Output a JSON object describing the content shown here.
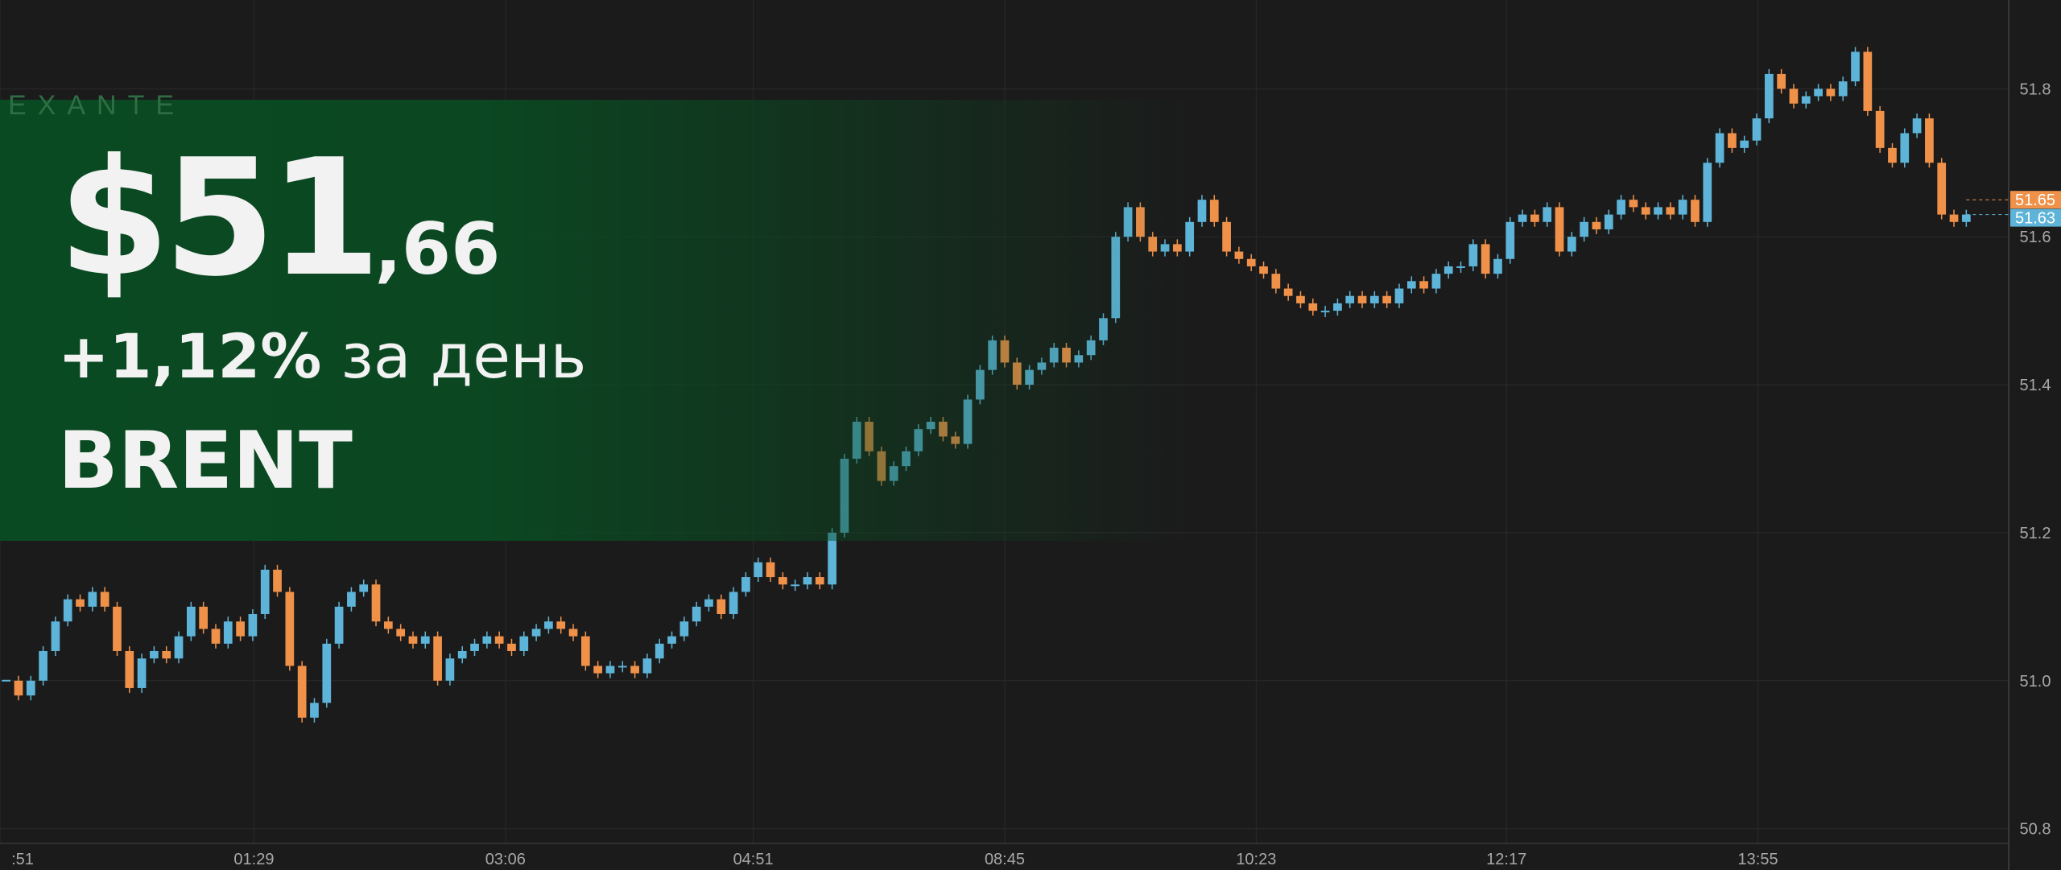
{
  "chart_data": {
    "type": "candlestick",
    "values": [
      51.0,
      50.98,
      51.0,
      51.04,
      51.08,
      51.11,
      51.1,
      51.12,
      51.1,
      51.04,
      50.99,
      51.03,
      51.04,
      51.03,
      51.06,
      51.1,
      51.07,
      51.05,
      51.08,
      51.06,
      51.09,
      51.15,
      51.12,
      51.02,
      50.95,
      50.97,
      51.05,
      51.1,
      51.12,
      51.13,
      51.08,
      51.07,
      51.06,
      51.05,
      51.06,
      51.0,
      51.03,
      51.04,
      51.05,
      51.06,
      51.05,
      51.04,
      51.06,
      51.07,
      51.08,
      51.07,
      51.06,
      51.02,
      51.01,
      51.02,
      51.02,
      51.01,
      51.03,
      51.05,
      51.06,
      51.08,
      51.1,
      51.11,
      51.09,
      51.12,
      51.14,
      51.16,
      51.14,
      51.13,
      51.13,
      51.14,
      51.13,
      51.2,
      51.3,
      51.35,
      51.31,
      51.27,
      51.29,
      51.31,
      51.34,
      51.35,
      51.33,
      51.32,
      51.38,
      51.42,
      51.46,
      51.43,
      51.4,
      51.42,
      51.43,
      51.45,
      51.43,
      51.44,
      51.46,
      51.49,
      51.6,
      51.64,
      51.6,
      51.58,
      51.59,
      51.58,
      51.62,
      51.65,
      51.62,
      51.58,
      51.57,
      51.56,
      51.55,
      51.53,
      51.52,
      51.51,
      51.5,
      51.5,
      51.51,
      51.52,
      51.51,
      51.52,
      51.51,
      51.53,
      51.54,
      51.53,
      51.55,
      51.56,
      51.56,
      51.59,
      51.55,
      51.57,
      51.62,
      51.63,
      51.62,
      51.64,
      51.58,
      51.6,
      51.62,
      51.61,
      51.63,
      51.65,
      51.64,
      51.63,
      51.64,
      51.63,
      51.65,
      51.62,
      51.7,
      51.74,
      51.72,
      51.73,
      51.76,
      51.82,
      51.8,
      51.78,
      51.79,
      51.8,
      51.79,
      51.81,
      51.85,
      51.77,
      51.72,
      51.7,
      51.74,
      51.76,
      51.7,
      51.63,
      51.62,
      51.63
    ],
    "up_color": "#5db4d8",
    "down_color": "#f0914a",
    "ylim": [
      50.78,
      51.92
    ],
    "yticks": [
      50.8,
      {
        "value": 51,
        "label": "51.0"
      },
      51.2,
      51.4,
      51.6,
      51.8
    ],
    "xticks": [
      {
        "value": 0,
        "label": ":51"
      },
      {
        "value": 20.6,
        "label": "01:29"
      },
      {
        "value": 41,
        "label": "03:06"
      },
      {
        "value": 61.1,
        "label": "04:51"
      },
      {
        "value": 81.5,
        "label": "08:45"
      },
      {
        "value": 101.9,
        "label": "10:23"
      },
      {
        "value": 122.2,
        "label": "12:17"
      },
      {
        "value": 142.6,
        "label": "13:55"
      }
    ],
    "price_markers": [
      {
        "value": 51.65,
        "label": "51.65",
        "color": "#f0914a"
      },
      {
        "value": 51.63,
        "label": "51.63",
        "color": "#5db4d8"
      }
    ],
    "grid": true
  },
  "overlay": {
    "brand": "EXANTE",
    "price_main": "$51",
    "price_fraction": ",66",
    "change": "+1,12%",
    "change_suffix": "за день",
    "ticker": "BRENT"
  }
}
